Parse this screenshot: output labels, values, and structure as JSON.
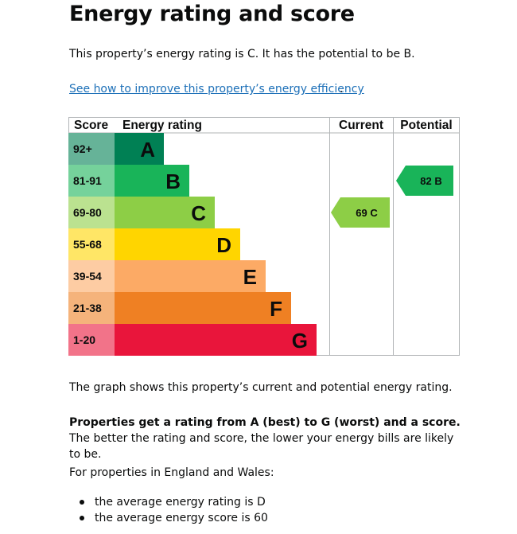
{
  "page": {
    "title": "Energy rating and score",
    "summary": "This property’s energy rating is C. It has the potential to be B.",
    "improve_link": "See how to improve this property’s energy efficiency",
    "period": ".",
    "graph_note": "The graph shows this property’s current and potential energy rating.",
    "range_bold": "Properties get a rating from A (best) to G (worst) and a score.",
    "range_rest": " The better the rating and score, the lower your energy bills are likely to be.",
    "england_wales": "For properties in England and Wales:",
    "averages": [
      "the average energy rating is D",
      "the average energy score is 60"
    ]
  },
  "chart_data": {
    "type": "table",
    "headers": {
      "score": "Score",
      "rating": "Energy rating",
      "current": "Current",
      "potential": "Potential"
    },
    "bands": [
      {
        "letter": "A",
        "score": "92+",
        "bar_color": "#008054",
        "score_bg": "#66b398"
      },
      {
        "letter": "B",
        "score": "81-91",
        "bar_color": "#19b459",
        "score_bg": "#75d29b"
      },
      {
        "letter": "C",
        "score": "69-80",
        "bar_color": "#8dce46",
        "score_bg": "#bbe290"
      },
      {
        "letter": "D",
        "score": "55-68",
        "bar_color": "#ffd500",
        "score_bg": "#ffe666"
      },
      {
        "letter": "E",
        "score": "39-54",
        "bar_color": "#fcaa65",
        "score_bg": "#fdcca3"
      },
      {
        "letter": "F",
        "score": "21-38",
        "bar_color": "#ef8023",
        "score_bg": "#f5b37b"
      },
      {
        "letter": "G",
        "score": "1-20",
        "bar_color": "#e9153b",
        "score_bg": "#f27389"
      }
    ],
    "current": {
      "score": 69,
      "letter": "C",
      "label": "69  C",
      "color": "#8dce46",
      "text_color": "#0b0c0c"
    },
    "potential": {
      "score": 82,
      "letter": "B",
      "label": "82  B",
      "color": "#19b459",
      "text_color": "#0b0c0c"
    }
  }
}
